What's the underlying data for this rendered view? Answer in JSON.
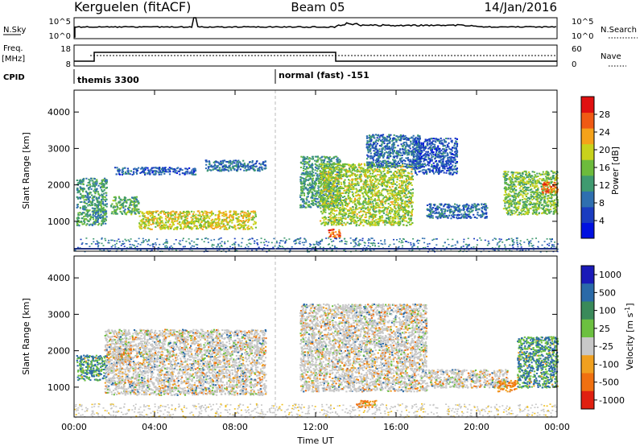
{
  "header": {
    "station": "Kerguelen (fitACF)",
    "beam": "Beam 05",
    "date": "14/Jan/2016"
  },
  "noise_panel": {
    "left_label": "N.Sky",
    "right_label": "N.Search",
    "left_ticks": [
      "10^5",
      "10^0"
    ],
    "right_ticks": [
      "10^5",
      "10^0"
    ]
  },
  "freq_panel": {
    "left_label_1": "Freq.",
    "left_label_2": "[MHz]",
    "right_label": "Nave",
    "left_ticks": [
      "18",
      "8"
    ],
    "right_ticks": [
      "60",
      "0"
    ]
  },
  "cpid": {
    "label": "CPID",
    "segments": [
      {
        "text": "themis 3300",
        "start_hour": 0
      },
      {
        "text": "normal (fast) -151",
        "start_hour": 10
      }
    ]
  },
  "power_panel": {
    "ylabel": "Slant Range [km]",
    "colorbar_label": "Power [dB]",
    "colorbar_ticks": [
      "28",
      "24",
      "20",
      "16",
      "12",
      "8",
      "4"
    ]
  },
  "velocity_panel": {
    "ylabel": "Slant Range [km]",
    "colorbar_ticks": [
      "1000",
      "500",
      "100",
      "25",
      "-25",
      "-100",
      "-500",
      "-1000"
    ]
  },
  "time_axis": {
    "xlabel": "Time UT",
    "ticks": [
      "00:00",
      "04:00",
      "08:00",
      "12:00",
      "16:00",
      "20:00",
      "00:00"
    ]
  },
  "chart_data": [
    {
      "type": "heatmap",
      "name": "power",
      "ylabel": "Slant Range [km]",
      "xlabel": "Time UT",
      "xlim_hours": [
        0,
        24
      ],
      "ylim_km": [
        180,
        4600
      ],
      "yticks": [
        1000,
        2000,
        3000,
        4000
      ],
      "colorbar": {
        "label": "Power [dB]",
        "range": [
          0,
          32
        ],
        "ticks": [
          4,
          8,
          12,
          16,
          20,
          24,
          28
        ]
      },
      "regions": [
        {
          "t": [
            0.1,
            1.6
          ],
          "r": [
            900,
            2200
          ],
          "level": 12
        },
        {
          "t": [
            1.8,
            3.2
          ],
          "r": [
            1200,
            1700
          ],
          "level": 14
        },
        {
          "t": [
            3.2,
            9.0
          ],
          "r": [
            800,
            1300
          ],
          "level": 20
        },
        {
          "t": [
            2.0,
            6.0
          ],
          "r": [
            2300,
            2500
          ],
          "level": 6
        },
        {
          "t": [
            6.5,
            9.5
          ],
          "r": [
            2400,
            2700
          ],
          "level": 8
        },
        {
          "t": [
            11.2,
            13.2
          ],
          "r": [
            1400,
            2800
          ],
          "level": 12
        },
        {
          "t": [
            12.2,
            16.8
          ],
          "r": [
            900,
            2600
          ],
          "level": 18
        },
        {
          "t": [
            12.6,
            13.2
          ],
          "r": [
            550,
            800
          ],
          "level": 28
        },
        {
          "t": [
            14.5,
            17.2
          ],
          "r": [
            2500,
            3400
          ],
          "level": 8
        },
        {
          "t": [
            16.8,
            19.0
          ],
          "r": [
            2300,
            3300
          ],
          "level": 6
        },
        {
          "t": [
            17.5,
            20.5
          ],
          "r": [
            1100,
            1500
          ],
          "level": 8
        },
        {
          "t": [
            21.3,
            24.0
          ],
          "r": [
            1200,
            2400
          ],
          "level": 16
        },
        {
          "t": [
            23.2,
            24.0
          ],
          "r": [
            1800,
            2100
          ],
          "level": 28
        }
      ]
    },
    {
      "type": "heatmap",
      "name": "velocity",
      "ylabel": "Slant Range [km]",
      "xlabel": "Time UT",
      "xlim_hours": [
        0,
        24
      ],
      "ylim_km": [
        180,
        4600
      ],
      "yticks": [
        1000,
        2000,
        3000,
        4000
      ],
      "colorbar": {
        "label": "Velocity [m s^-1]",
        "ticks": [
          1000,
          500,
          100,
          25,
          -25,
          -100,
          -500,
          -1000
        ]
      },
      "regions": [
        {
          "t": [
            0.1,
            1.6
          ],
          "r": [
            1200,
            1900
          ],
          "vel": 100
        },
        {
          "t": [
            1.9,
            2.8
          ],
          "r": [
            1700,
            2100
          ],
          "vel": -100
        },
        {
          "t": [
            1.5,
            9.5
          ],
          "r": [
            800,
            2600
          ],
          "vel": 0
        },
        {
          "t": [
            11.2,
            17.5
          ],
          "r": [
            900,
            3300
          ],
          "vel": 0
        },
        {
          "t": [
            14.0,
            15.0
          ],
          "r": [
            450,
            650
          ],
          "vel": -100
        },
        {
          "t": [
            17.5,
            21.5
          ],
          "r": [
            1000,
            1500
          ],
          "vel": 0
        },
        {
          "t": [
            21.0,
            22.0
          ],
          "r": [
            900,
            1200
          ],
          "vel": -100
        },
        {
          "t": [
            22.0,
            24.0
          ],
          "r": [
            1000,
            2400
          ],
          "vel": 100
        }
      ]
    }
  ]
}
